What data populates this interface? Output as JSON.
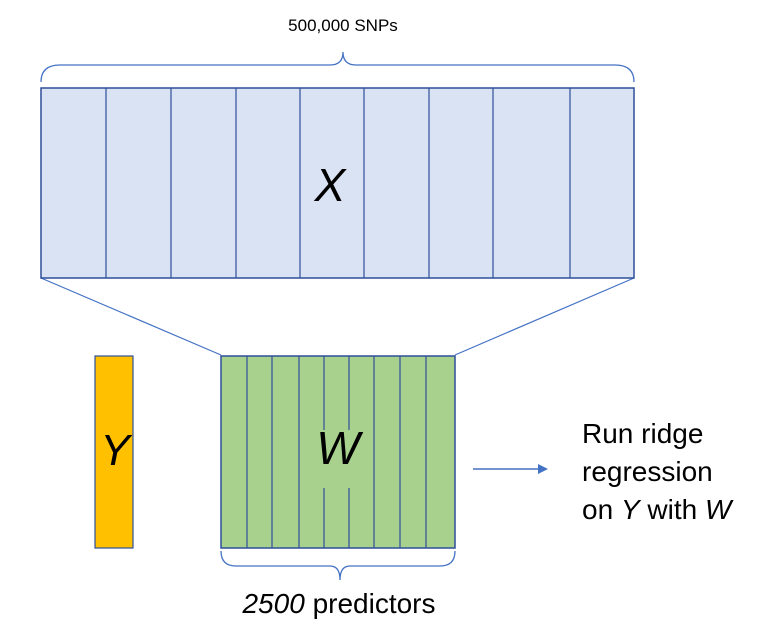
{
  "diagram": {
    "snp_count_label": "500,000 SNPs",
    "matrix_x_label": "X",
    "vector_y_label": "Y",
    "matrix_w_label": "W",
    "predictor_count": "2500",
    "predictor_unit": "predictors",
    "action": {
      "line1": "Run ridge",
      "line2": "regression",
      "line3_prefix": "on ",
      "line3_y": "Y",
      "line3_middle": " with ",
      "line3_w": "W"
    }
  },
  "colors": {
    "x_fill": "#dae3f3",
    "x_stroke": "#2f4f9a",
    "w_fill": "#a9d18e",
    "w_stroke": "#2f4f9a",
    "y_fill": "#ffc000",
    "y_stroke": "#2f4f9a",
    "connector": "#4472c4",
    "arrow": "#4472c4",
    "brace": "#4472c4"
  }
}
